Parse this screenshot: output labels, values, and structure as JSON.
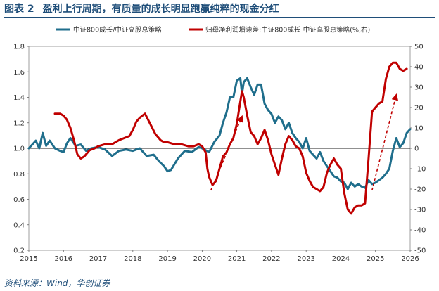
{
  "figure": {
    "label": "图表 2",
    "title": "盈利上行周期，有质量的成长明显跑赢纯粹的现金分红",
    "source": "资料来源：Wind，华创证券"
  },
  "colors": {
    "blue": "#1f6e8c",
    "red": "#c00000"
  },
  "chart_data": {
    "type": "line",
    "title": "",
    "xlabel": "",
    "ylabel": "",
    "x_ticks": [
      "2015",
      "2016",
      "2017",
      "2018",
      "2019",
      "2020",
      "2021",
      "2022",
      "2023",
      "2024",
      "2025",
      "2026"
    ],
    "xlim": [
      2015,
      2026
    ],
    "left_axis": {
      "ylim": [
        0.2,
        1.8
      ],
      "ticks": [
        "0.2",
        "0.4",
        "0.6",
        "0.8",
        "1.0",
        "1.2",
        "1.4",
        "1.6",
        "1.8"
      ]
    },
    "right_axis": {
      "ylim": [
        -50,
        50
      ],
      "ticks": [
        "-50",
        "-40",
        "-30",
        "-20",
        "-10",
        "0",
        "10",
        "20",
        "30",
        "40",
        "50"
      ]
    },
    "reference_line": {
      "axis": "left",
      "value": 1.0
    },
    "legend_position": "top",
    "series": [
      {
        "name": "中证800成长/中证高股息策略",
        "axis": "left",
        "color": "blue",
        "x": [
          2015.0,
          2015.1,
          2015.2,
          2015.3,
          2015.4,
          2015.5,
          2015.6,
          2015.75,
          2015.9,
          2016.0,
          2016.1,
          2016.2,
          2016.35,
          2016.5,
          2016.65,
          2016.8,
          2017.0,
          2017.2,
          2017.4,
          2017.6,
          2017.8,
          2018.0,
          2018.2,
          2018.4,
          2018.6,
          2018.75,
          2018.9,
          2019.0,
          2019.1,
          2019.3,
          2019.5,
          2019.7,
          2019.9,
          2020.0,
          2020.2,
          2020.35,
          2020.5,
          2020.6,
          2020.7,
          2020.8,
          2020.9,
          2021.0,
          2021.1,
          2021.15,
          2021.2,
          2021.3,
          2021.4,
          2021.5,
          2021.6,
          2021.7,
          2021.8,
          2021.9,
          2022.0,
          2022.1,
          2022.2,
          2022.3,
          2022.4,
          2022.5,
          2022.6,
          2022.7,
          2022.8,
          2022.9,
          2023.0,
          2023.1,
          2023.2,
          2023.3,
          2023.4,
          2023.5,
          2023.6,
          2023.7,
          2023.8,
          2023.9,
          2024.0,
          2024.1,
          2024.2,
          2024.3,
          2024.4,
          2024.5,
          2024.6,
          2024.7,
          2024.8,
          2024.9,
          2025.0,
          2025.1,
          2025.2,
          2025.3,
          2025.4,
          2025.5,
          2025.6,
          2025.7,
          2025.8,
          2025.9,
          2026.0
        ],
        "values": [
          1.0,
          1.03,
          1.06,
          1.0,
          1.12,
          1.02,
          1.06,
          1.0,
          0.98,
          0.97,
          1.04,
          1.08,
          1.02,
          1.03,
          0.98,
          1.0,
          1.01,
          0.99,
          0.94,
          0.98,
          0.99,
          0.98,
          1.0,
          0.94,
          0.95,
          0.9,
          0.86,
          0.82,
          0.83,
          0.92,
          0.98,
          0.97,
          1.01,
          1.0,
          0.97,
          1.05,
          1.1,
          1.2,
          1.28,
          1.4,
          1.4,
          1.53,
          1.55,
          1.43,
          1.52,
          1.55,
          1.48,
          1.42,
          1.5,
          1.5,
          1.35,
          1.3,
          1.27,
          1.2,
          1.25,
          1.22,
          1.15,
          1.2,
          1.12,
          1.08,
          1.05,
          1.0,
          1.08,
          0.98,
          0.95,
          0.92,
          0.97,
          0.9,
          0.86,
          0.82,
          0.78,
          0.77,
          0.74,
          0.73,
          0.68,
          0.73,
          0.7,
          0.72,
          0.7,
          0.69,
          0.75,
          0.72,
          0.73,
          0.75,
          0.77,
          0.8,
          0.84,
          0.98,
          1.08,
          1.01,
          1.04,
          1.12,
          1.15
        ]
      },
      {
        "name": "归母净利润增速差:中证800成长-中证高股息策略(%,右)",
        "axis": "right",
        "color": "red",
        "x": [
          2015.75,
          2015.9,
          2016.0,
          2016.1,
          2016.2,
          2016.3,
          2016.4,
          2016.5,
          2016.6,
          2016.75,
          2016.9,
          2017.0,
          2017.2,
          2017.4,
          2017.6,
          2017.75,
          2017.9,
          2018.0,
          2018.1,
          2018.2,
          2018.35,
          2018.5,
          2018.65,
          2018.8,
          2018.9,
          2019.0,
          2019.2,
          2019.4,
          2019.6,
          2019.75,
          2019.9,
          2020.0,
          2020.1,
          2020.15,
          2020.2,
          2020.3,
          2020.4,
          2020.5,
          2020.6,
          2020.7,
          2020.8,
          2020.9,
          2021.0,
          2021.1,
          2021.15,
          2021.2,
          2021.3,
          2021.4,
          2021.5,
          2021.6,
          2021.7,
          2021.8,
          2021.9,
          2022.0,
          2022.1,
          2022.2,
          2022.3,
          2022.4,
          2022.5,
          2022.6,
          2022.7,
          2022.8,
          2022.9,
          2023.0,
          2023.1,
          2023.2,
          2023.3,
          2023.4,
          2023.5,
          2023.6,
          2023.7,
          2023.8,
          2023.9,
          2024.0,
          2024.1,
          2024.2,
          2024.3,
          2024.4,
          2024.5,
          2024.6,
          2024.7,
          2024.8,
          2024.9,
          2025.0,
          2025.1,
          2025.2,
          2025.3,
          2025.4,
          2025.5,
          2025.6,
          2025.7,
          2025.8,
          2025.9
        ],
        "values": [
          17,
          17,
          16,
          14,
          10,
          4,
          -3,
          -5,
          -4,
          -1,
          0,
          1,
          2,
          2,
          4,
          5,
          6,
          9,
          13,
          15,
          17,
          12,
          7,
          4,
          3,
          3,
          2,
          2,
          1,
          1,
          2,
          1,
          -2,
          -10,
          -14,
          -18,
          -16,
          -10,
          -4,
          -2,
          2,
          5,
          12,
          23,
          28,
          25,
          16,
          8,
          6,
          2,
          5,
          9,
          4,
          -3,
          -8,
          -13,
          -5,
          2,
          6,
          4,
          1,
          0,
          -4,
          -12,
          -16,
          -19,
          -20,
          -21,
          -19,
          -12,
          -8,
          -5,
          -8,
          -10,
          -22,
          -30,
          -32,
          -29,
          -28,
          -28,
          -27,
          -5,
          18,
          20,
          22,
          23,
          34,
          40,
          42,
          42,
          39,
          38,
          39
        ]
      }
    ],
    "annotations": [
      {
        "type": "dashed-arrow",
        "color": "red",
        "from": [
          2020.25,
          0.67
        ],
        "to": [
          2021.15,
          1.25
        ]
      },
      {
        "type": "dashed-arrow",
        "color": "red",
        "from": [
          2024.9,
          0.67
        ],
        "to": [
          2025.6,
          1.42
        ]
      }
    ]
  }
}
